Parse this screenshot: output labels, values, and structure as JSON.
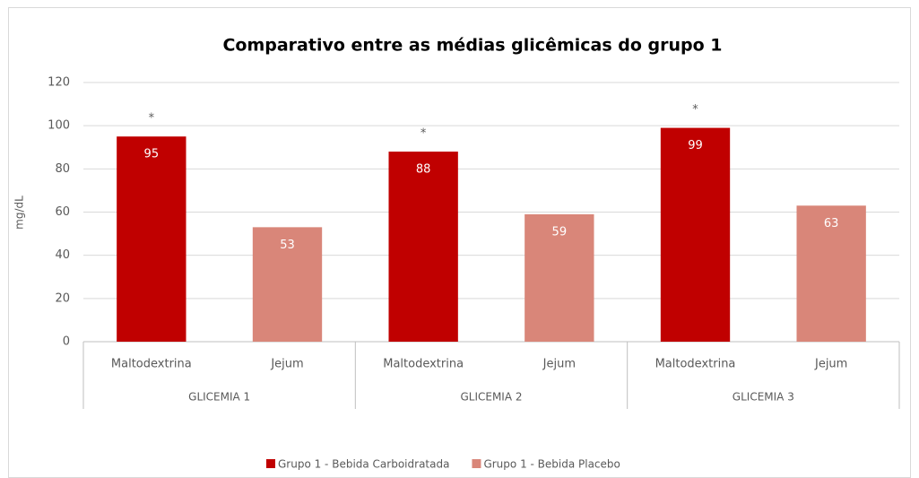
{
  "chart_data": {
    "type": "bar",
    "title": "Comparativo entre as médias glicêmicas do grupo 1",
    "y_label": "mg/dL",
    "groups": [
      "GLICEMIA 1",
      "GLICEMIA 2",
      "GLICEMIA 3"
    ],
    "categories": [
      "Maltodextrina",
      "Jejum",
      "Maltodextrina",
      "Jejum",
      "Maltodextrina",
      "Jejum"
    ],
    "series": [
      {
        "name": "Grupo 1 - Bebida Carboidratada",
        "color": "#c00000",
        "values": [
          95,
          null,
          88,
          null,
          99,
          null
        ],
        "annotations": [
          "*",
          null,
          "*",
          null,
          "*",
          null
        ]
      },
      {
        "name": "Grupo 1 - Bebida Placebo",
        "color": "#d98679",
        "values": [
          null,
          53,
          null,
          59,
          null,
          63
        ]
      }
    ],
    "ylim": [
      0,
      120
    ],
    "yticks": [
      0,
      20,
      40,
      60,
      80,
      100,
      120
    ],
    "grid": true,
    "legend": "bottom"
  }
}
